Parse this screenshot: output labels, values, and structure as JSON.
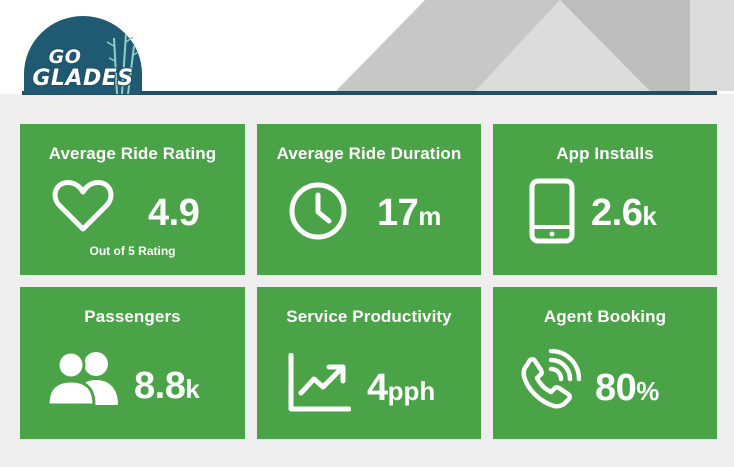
{
  "logo": {
    "line1": "GO",
    "line2": "GLADES"
  },
  "metrics": [
    {
      "title": "Average Ride Rating",
      "value": "4.9",
      "unit": "",
      "subtitle": "Out of 5 Rating",
      "icon": "heart-icon"
    },
    {
      "title": "Average Ride Duration",
      "value": "17",
      "unit": "m",
      "icon": "clock-icon"
    },
    {
      "title": "App Installs",
      "value": "2.6",
      "unit": "k",
      "icon": "smartphone-icon"
    },
    {
      "title": "Passengers",
      "value": "8.8",
      "unit": "k",
      "icon": "users-icon"
    },
    {
      "title": "Service Productivity",
      "value": "4",
      "unit": "pph",
      "icon": "trending-up-icon"
    },
    {
      "title": "Agent Booking",
      "value": "80",
      "unit": "%",
      "icon": "phone-ringing-icon"
    }
  ],
  "colors": {
    "card": "#4aa346",
    "header_rule": "#1f4e66",
    "logo_bg": "#1f5a72"
  }
}
